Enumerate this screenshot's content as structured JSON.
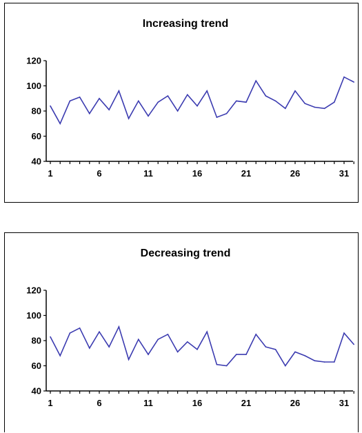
{
  "chart_data": [
    {
      "type": "line",
      "title": "Increasing trend",
      "xlabel": "",
      "ylabel": "",
      "ylim": [
        40,
        120
      ],
      "yticks": [
        40,
        60,
        80,
        100,
        120
      ],
      "xticks": [
        1,
        6,
        11,
        16,
        21,
        26,
        31
      ],
      "grid": false,
      "legend": "none",
      "line_color": "#3b3bb0",
      "series": [
        {
          "x": [
            1,
            2,
            3,
            4,
            5,
            6,
            7,
            8,
            9,
            10,
            11,
            12,
            13,
            14,
            15,
            16,
            17,
            18,
            19,
            20,
            21,
            22,
            23,
            24,
            25,
            26,
            27,
            28,
            29,
            30,
            31,
            32
          ],
          "values": [
            84,
            70,
            88,
            91,
            78,
            90,
            81,
            96,
            74,
            88,
            76,
            87,
            92,
            80,
            93,
            84,
            96,
            75,
            78,
            88,
            87,
            104,
            92,
            88,
            82,
            96,
            86,
            83,
            82,
            87,
            107,
            103
          ]
        }
      ]
    },
    {
      "type": "line",
      "title": "Decreasing trend",
      "xlabel": "",
      "ylabel": "",
      "ylim": [
        40,
        120
      ],
      "yticks": [
        40,
        60,
        80,
        100,
        120
      ],
      "xticks": [
        1,
        6,
        11,
        16,
        21,
        26,
        31
      ],
      "grid": false,
      "legend": "none",
      "line_color": "#3b3bb0",
      "series": [
        {
          "x": [
            1,
            2,
            3,
            4,
            5,
            6,
            7,
            8,
            9,
            10,
            11,
            12,
            13,
            14,
            15,
            16,
            17,
            18,
            19,
            20,
            21,
            22,
            23,
            24,
            25,
            26,
            27,
            28,
            29,
            30,
            31,
            32
          ],
          "values": [
            83,
            68,
            86,
            90,
            74,
            87,
            75,
            91,
            65,
            81,
            69,
            81,
            85,
            71,
            79,
            73,
            87,
            61,
            60,
            69,
            69,
            85,
            75,
            73,
            60,
            71,
            68,
            64,
            63,
            63,
            86,
            77
          ]
        }
      ]
    }
  ]
}
